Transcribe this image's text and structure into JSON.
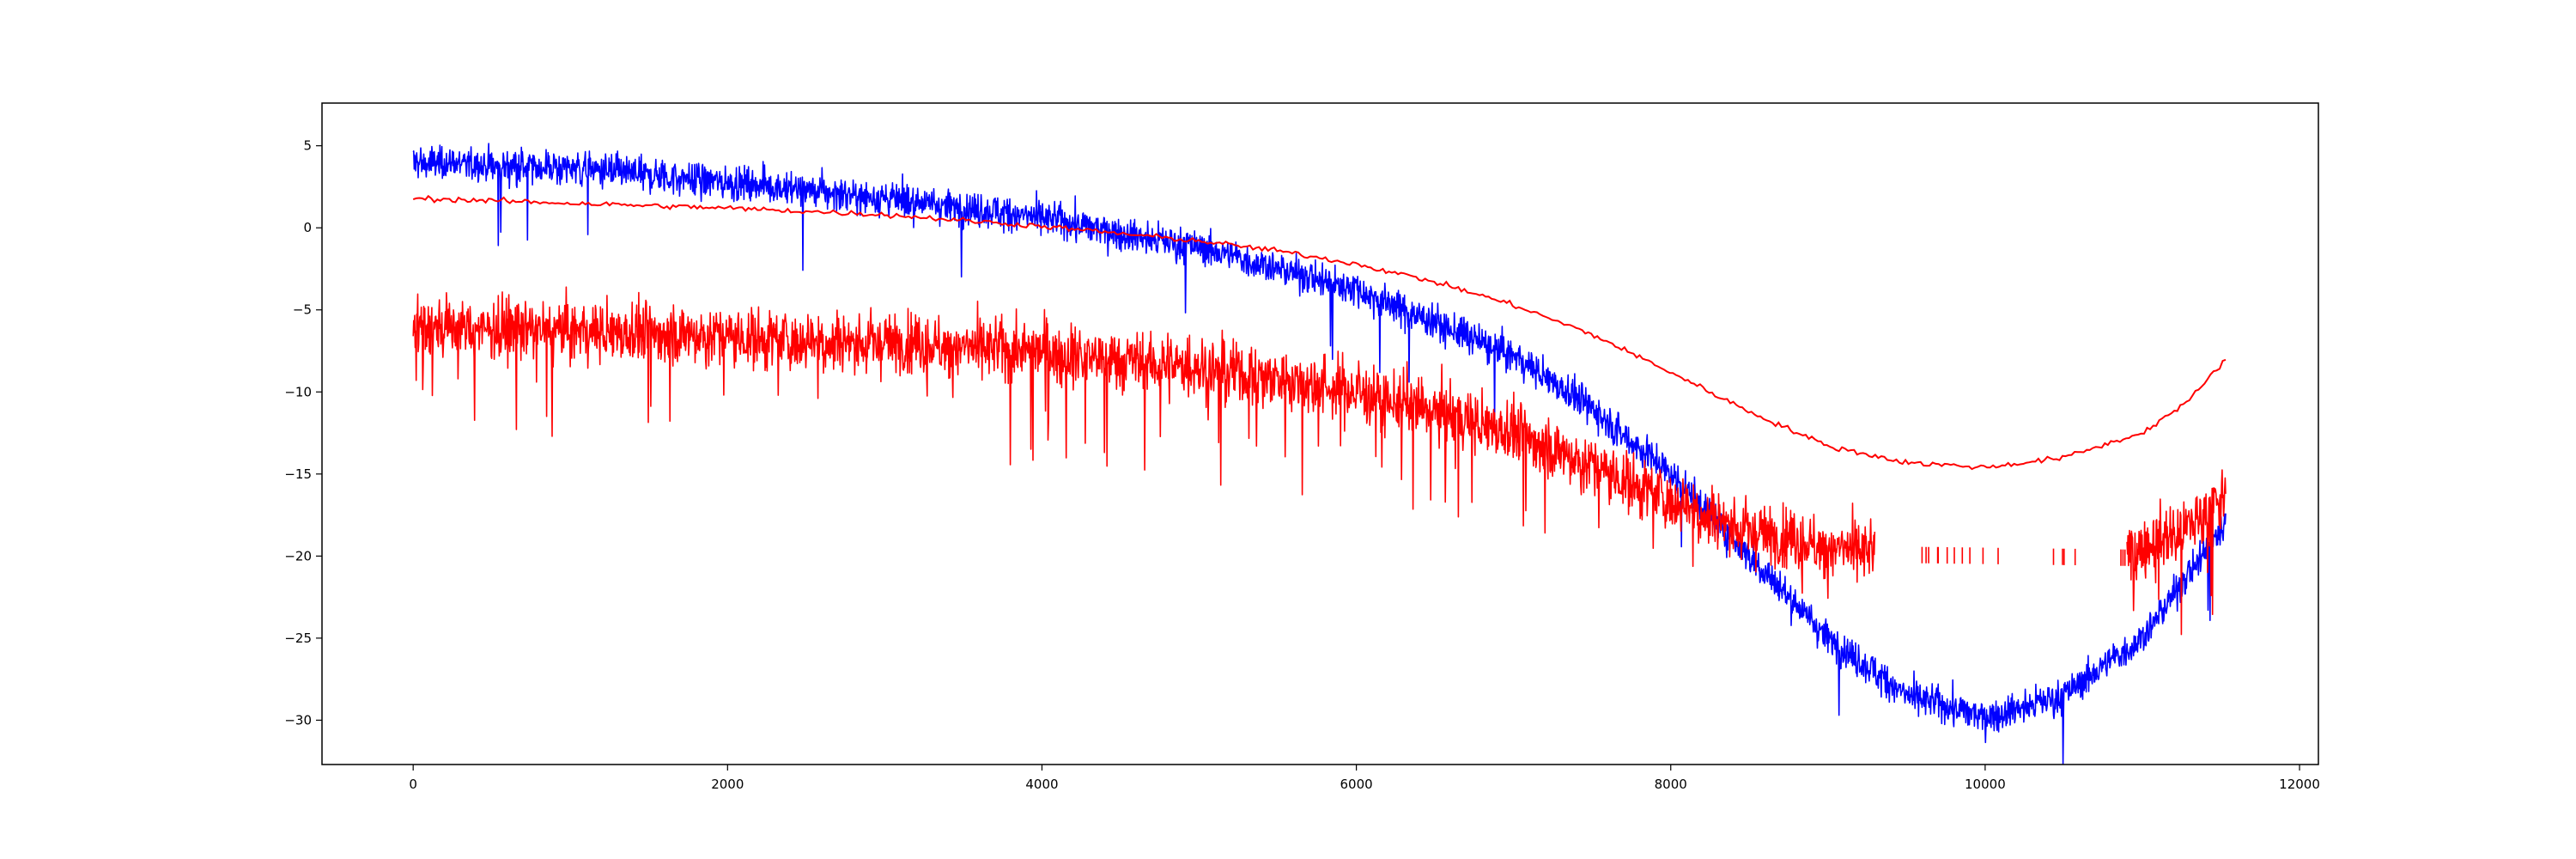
{
  "chart_data": {
    "type": "line",
    "title": "",
    "xlabel": "",
    "ylabel": "",
    "xlim": [
      -580,
      12120
    ],
    "ylim": [
      -32.7,
      7.6
    ],
    "grid": false,
    "legend": "none",
    "x_ticks": [
      0,
      2000,
      4000,
      6000,
      8000,
      10000,
      12000
    ],
    "x_tick_labels": [
      "0",
      "2000",
      "4000",
      "6000",
      "8000",
      "10000",
      "12000"
    ],
    "y_ticks": [
      5,
      0,
      -5,
      -10,
      -15,
      -20,
      -25,
      -30
    ],
    "y_tick_labels": [
      "5",
      "0",
      "−5",
      "−10",
      "−15",
      "−20",
      "−25",
      "−30"
    ],
    "colors": {
      "blue": "#0000ff",
      "red": "#ff0000",
      "axis": "#000000",
      "background": "#ffffff"
    },
    "series": [
      {
        "style": "noisy",
        "color": "#0000ff",
        "x_range": [
          0,
          11530
        ],
        "trend": {
          "x": [
            0,
            1000,
            2000,
            3000,
            4000,
            5000,
            6000,
            7000,
            7500,
            8000,
            8500,
            9000,
            9500,
            10000,
            10500,
            11000,
            11530
          ],
          "y": [
            4.0,
            3.6,
            2.8,
            1.8,
            0.6,
            -1.2,
            -3.8,
            -7.8,
            -11.0,
            -15.0,
            -20.0,
            -25.0,
            -28.5,
            -29.8,
            -28.5,
            -25.0,
            -18.0
          ]
        },
        "noise_amplitude": 0.9
      },
      {
        "style": "noisy",
        "color": "#ff0000",
        "x_range": [
          0,
          11530
        ],
        "gap": [
          9300,
          10900
        ],
        "trend": {
          "x": [
            0,
            1000,
            2000,
            3000,
            4000,
            5000,
            6000,
            7000,
            7500,
            8000,
            8500,
            9000,
            9300,
            10900,
            11200,
            11530
          ],
          "y": [
            -6.0,
            -6.3,
            -6.6,
            -7.0,
            -7.6,
            -8.5,
            -10.0,
            -12.5,
            -14.5,
            -16.5,
            -18.5,
            -19.5,
            -19.8,
            -20.0,
            -18.8,
            -16.5
          ]
        },
        "noise_amplitude": 1.6,
        "drop_amplitude": 5.0
      },
      {
        "style": "smooth",
        "color": "#ff0000",
        "x": [
          0,
          1000,
          2000,
          3000,
          4000,
          5000,
          5500,
          6000,
          6500,
          7000,
          7500,
          8000,
          8500,
          9000,
          9500,
          10000,
          10500,
          11000,
          11300,
          11530
        ],
        "y": [
          1.8,
          1.5,
          1.2,
          0.8,
          0.1,
          -0.8,
          -1.4,
          -2.2,
          -3.3,
          -4.7,
          -6.5,
          -8.8,
          -11.2,
          -13.3,
          -14.3,
          -14.6,
          -14.0,
          -12.5,
          -10.5,
          -8.0
        ]
      }
    ]
  }
}
